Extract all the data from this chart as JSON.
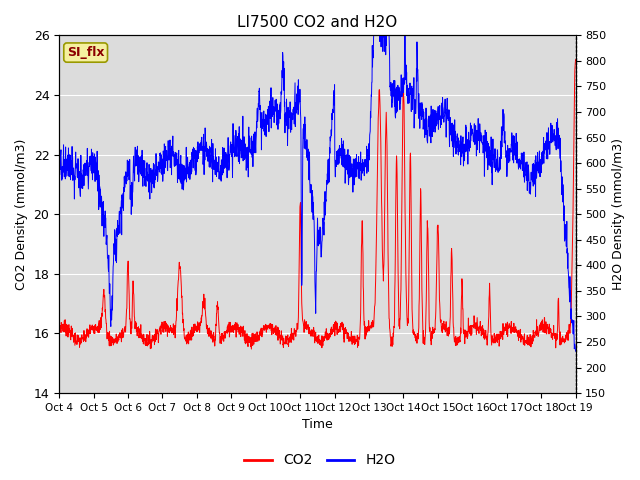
{
  "title": "LI7500 CO2 and H2O",
  "xlabel": "Time",
  "ylabel_left": "CO2 Density (mmol/m3)",
  "ylabel_right": "H2O Density (mmol/m3)",
  "ylim_left": [
    14,
    26
  ],
  "ylim_right": [
    150,
    850
  ],
  "x_tick_labels": [
    "Oct 4",
    "Oct 5",
    "Oct 6",
    "Oct 7",
    "Oct 8",
    "Oct 9",
    "Oct 10",
    "Oct 11",
    "Oct 12",
    "Oct 13",
    "Oct 14",
    "Oct 15",
    "Oct 16",
    "Oct 17",
    "Oct 18",
    "Oct 19"
  ],
  "annotation_text": "SI_flx",
  "annotation_color": "#8B0000",
  "annotation_bg": "#F5F0A0",
  "annotation_edge": "#999900",
  "bg_color": "#DCDCDC",
  "line_co2_color": "red",
  "line_h2o_color": "blue",
  "legend_co2": "CO2",
  "legend_h2o": "H2O",
  "n_points": 2000,
  "right_yticks": [
    150,
    200,
    250,
    300,
    350,
    400,
    450,
    500,
    550,
    600,
    650,
    700,
    750,
    800,
    850
  ],
  "left_yticks": [
    14,
    16,
    18,
    20,
    22,
    24,
    26
  ],
  "grid_color": "white",
  "fig_width": 6.4,
  "fig_height": 4.8,
  "fig_dpi": 100
}
